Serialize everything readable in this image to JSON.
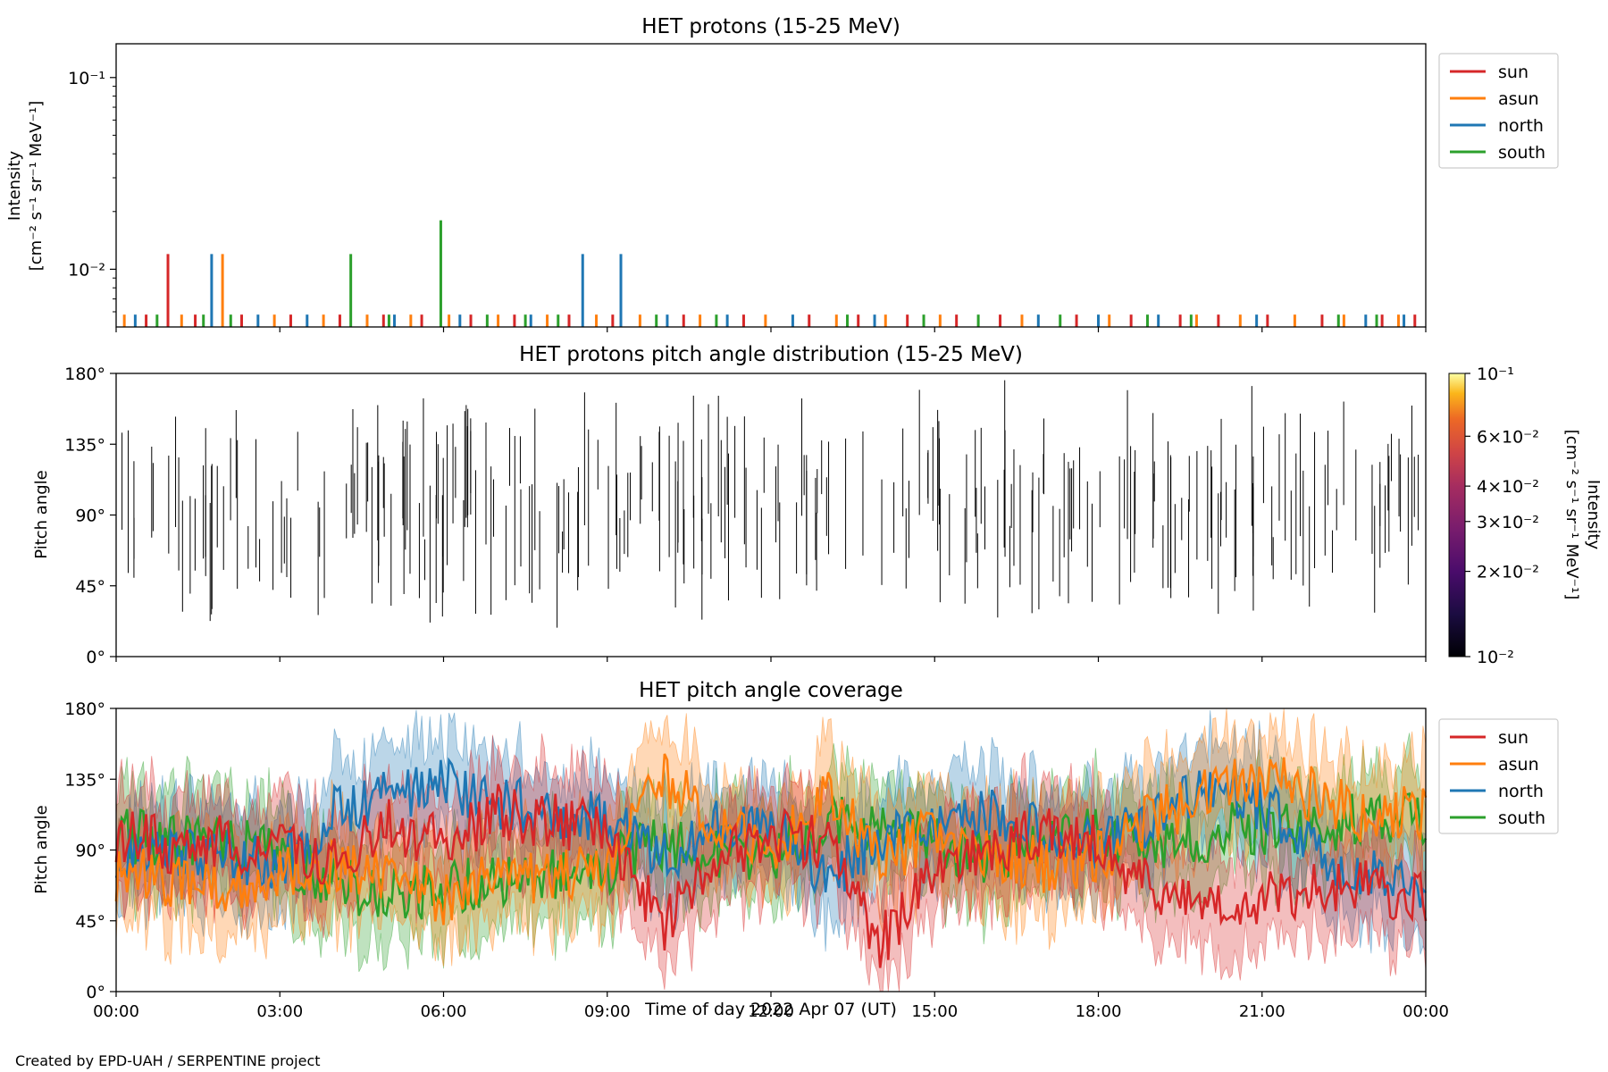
{
  "footer": "Created by EPD-UAH / SERPENTINE project",
  "xaxis": {
    "label": "Time of day 2022 Apr 07 (UT)",
    "ticks": [
      "00:00",
      "03:00",
      "06:00",
      "09:00",
      "12:00",
      "15:00",
      "18:00",
      "21:00",
      "00:00"
    ],
    "range_hours": [
      0,
      24
    ]
  },
  "colors": {
    "sun": "#d62728",
    "asun": "#ff7f0e",
    "north": "#1f77b4",
    "south": "#2ca02c"
  },
  "chart_data": [
    {
      "type": "bar",
      "title": "HET protons (15-25 MeV)",
      "ylabel_line1": "Intensity",
      "ylabel_line2": "[cm⁻² s⁻¹ sr⁻¹ MeV⁻¹]",
      "yscale": "log",
      "ylim": [
        0.005,
        0.15
      ],
      "yticks": [
        {
          "label": "10⁻¹",
          "value": 0.1
        },
        {
          "label": "10⁻²",
          "value": 0.01
        }
      ],
      "grid": false,
      "legend_position": "outside-top-right",
      "series": [
        {
          "name": "sun",
          "points": [
            [
              0.55,
              0.0058
            ],
            [
              0.95,
              0.012
            ],
            [
              1.45,
              0.0058
            ],
            [
              2.3,
              0.0058
            ],
            [
              3.2,
              0.0058
            ],
            [
              4.1,
              0.0058
            ],
            [
              4.9,
              0.0058
            ],
            [
              5.6,
              0.0058
            ],
            [
              6.5,
              0.0058
            ],
            [
              7.3,
              0.0058
            ],
            [
              8.3,
              0.0058
            ],
            [
              9.1,
              0.0058
            ],
            [
              10.4,
              0.0058
            ],
            [
              11.5,
              0.0058
            ],
            [
              12.7,
              0.0058
            ],
            [
              13.6,
              0.0058
            ],
            [
              14.5,
              0.0058
            ],
            [
              15.4,
              0.0058
            ],
            [
              16.2,
              0.0058
            ],
            [
              17.6,
              0.0058
            ],
            [
              18.6,
              0.0058
            ],
            [
              19.5,
              0.0058
            ],
            [
              20.2,
              0.0058
            ],
            [
              21.1,
              0.0058
            ],
            [
              22.1,
              0.0058
            ],
            [
              23.2,
              0.0058
            ],
            [
              23.8,
              0.0058
            ]
          ]
        },
        {
          "name": "asun",
          "points": [
            [
              0.15,
              0.0058
            ],
            [
              1.2,
              0.0058
            ],
            [
              1.95,
              0.012
            ],
            [
              2.9,
              0.0058
            ],
            [
              3.8,
              0.0058
            ],
            [
              4.6,
              0.0058
            ],
            [
              5.4,
              0.0058
            ],
            [
              6.1,
              0.0058
            ],
            [
              7.0,
              0.0058
            ],
            [
              7.9,
              0.0058
            ],
            [
              8.8,
              0.0058
            ],
            [
              9.6,
              0.0058
            ],
            [
              10.7,
              0.0058
            ],
            [
              11.9,
              0.0058
            ],
            [
              13.2,
              0.0058
            ],
            [
              14.1,
              0.0058
            ],
            [
              15.1,
              0.0058
            ],
            [
              16.6,
              0.0058
            ],
            [
              18.2,
              0.0058
            ],
            [
              19.8,
              0.0058
            ],
            [
              20.6,
              0.0058
            ],
            [
              21.6,
              0.0058
            ],
            [
              22.5,
              0.0058
            ],
            [
              23.5,
              0.0058
            ]
          ]
        },
        {
          "name": "north",
          "points": [
            [
              0.35,
              0.0058
            ],
            [
              1.75,
              0.012
            ],
            [
              2.6,
              0.0058
            ],
            [
              3.5,
              0.0058
            ],
            [
              5.1,
              0.0058
            ],
            [
              6.3,
              0.0058
            ],
            [
              7.6,
              0.0058
            ],
            [
              8.55,
              0.012
            ],
            [
              9.25,
              0.012
            ],
            [
              10.1,
              0.0058
            ],
            [
              11.2,
              0.0058
            ],
            [
              12.4,
              0.0058
            ],
            [
              13.9,
              0.0058
            ],
            [
              16.9,
              0.0058
            ],
            [
              18.0,
              0.0058
            ],
            [
              19.1,
              0.0058
            ],
            [
              20.9,
              0.0058
            ],
            [
              22.9,
              0.0058
            ],
            [
              23.6,
              0.0058
            ]
          ]
        },
        {
          "name": "south",
          "points": [
            [
              0.75,
              0.0058
            ],
            [
              1.6,
              0.0058
            ],
            [
              2.1,
              0.0058
            ],
            [
              4.3,
              0.012
            ],
            [
              5.0,
              0.0058
            ],
            [
              5.95,
              0.018
            ],
            [
              6.8,
              0.0058
            ],
            [
              7.5,
              0.0058
            ],
            [
              8.1,
              0.0058
            ],
            [
              9.9,
              0.0058
            ],
            [
              11.0,
              0.0058
            ],
            [
              13.4,
              0.0058
            ],
            [
              14.8,
              0.0058
            ],
            [
              15.8,
              0.0058
            ],
            [
              17.3,
              0.0058
            ],
            [
              18.9,
              0.0058
            ],
            [
              19.7,
              0.0058
            ],
            [
              22.4,
              0.0058
            ],
            [
              23.1,
              0.0058
            ]
          ]
        }
      ]
    },
    {
      "type": "heatmap",
      "title": "HET protons pitch angle distribution (15-25 MeV)",
      "ylabel": "Pitch angle",
      "ylim": [
        0,
        180
      ],
      "yticks": [
        "0°",
        "45°",
        "90°",
        "135°",
        "180°"
      ],
      "colorbar": {
        "label_line1": "Intensity",
        "label_line2": "[cm⁻² s⁻¹ sr⁻¹ MeV⁻¹]",
        "scale": "log",
        "range": [
          0.01,
          0.1
        ],
        "colormap": "inferno",
        "ticks": [
          {
            "label": "10⁻¹",
            "value": 0.1
          },
          {
            "label": "6×10⁻²",
            "value": 0.06
          },
          {
            "label": "4×10⁻²",
            "value": 0.04
          },
          {
            "label": "3×10⁻²",
            "value": 0.03
          },
          {
            "label": "2×10⁻²",
            "value": 0.02
          },
          {
            "label": "10⁻²",
            "value": 0.01
          }
        ]
      },
      "segments_note_count": 260
    },
    {
      "type": "area",
      "title": "HET pitch angle coverage",
      "ylabel": "Pitch angle",
      "ylim": [
        0,
        180
      ],
      "yticks": [
        "0°",
        "45°",
        "90°",
        "135°",
        "180°"
      ],
      "legend_position": "outside-top-right",
      "series": [
        {
          "name": "sun",
          "x": [
            0,
            1,
            2,
            3,
            4,
            5,
            6,
            7,
            8,
            9,
            10,
            11,
            12,
            13,
            14,
            15,
            16,
            17,
            18,
            19,
            20,
            21,
            22,
            23,
            24
          ],
          "values": [
            100,
            92,
            95,
            88,
            85,
            105,
            95,
            115,
            108,
            105,
            40,
            85,
            100,
            95,
            30,
            80,
            92,
            100,
            95,
            65,
            62,
            58,
            68,
            65,
            62
          ]
        },
        {
          "name": "asun",
          "x": [
            0,
            1,
            2,
            3,
            4,
            5,
            6,
            7,
            8,
            9,
            10,
            11,
            12,
            13,
            14,
            15,
            16,
            17,
            18,
            19,
            20,
            21,
            22,
            23,
            24
          ],
          "values": [
            75,
            72,
            65,
            78,
            80,
            70,
            60,
            75,
            72,
            80,
            135,
            110,
            85,
            130,
            85,
            100,
            90,
            80,
            85,
            110,
            125,
            135,
            125,
            110,
            115
          ]
        },
        {
          "name": "north",
          "x": [
            0,
            1,
            2,
            3,
            4,
            5,
            6,
            7,
            8,
            9,
            10,
            11,
            12,
            13,
            14,
            15,
            16,
            17,
            18,
            19,
            20,
            21,
            22,
            23,
            24
          ],
          "values": [
            90,
            85,
            88,
            80,
            115,
            125,
            130,
            120,
            115,
            110,
            85,
            105,
            110,
            70,
            100,
            110,
            115,
            105,
            95,
            110,
            130,
            120,
            90,
            75,
            65
          ]
        },
        {
          "name": "south",
          "x": [
            0,
            1,
            2,
            3,
            4,
            5,
            6,
            7,
            8,
            9,
            10,
            11,
            12,
            13,
            14,
            15,
            16,
            17,
            18,
            19,
            20,
            21,
            22,
            23,
            24
          ],
          "values": [
            100,
            95,
            95,
            85,
            68,
            60,
            65,
            70,
            75,
            80,
            95,
            90,
            85,
            110,
            105,
            95,
            85,
            100,
            100,
            95,
            100,
            105,
            105,
            110,
            110
          ]
        }
      ]
    }
  ]
}
